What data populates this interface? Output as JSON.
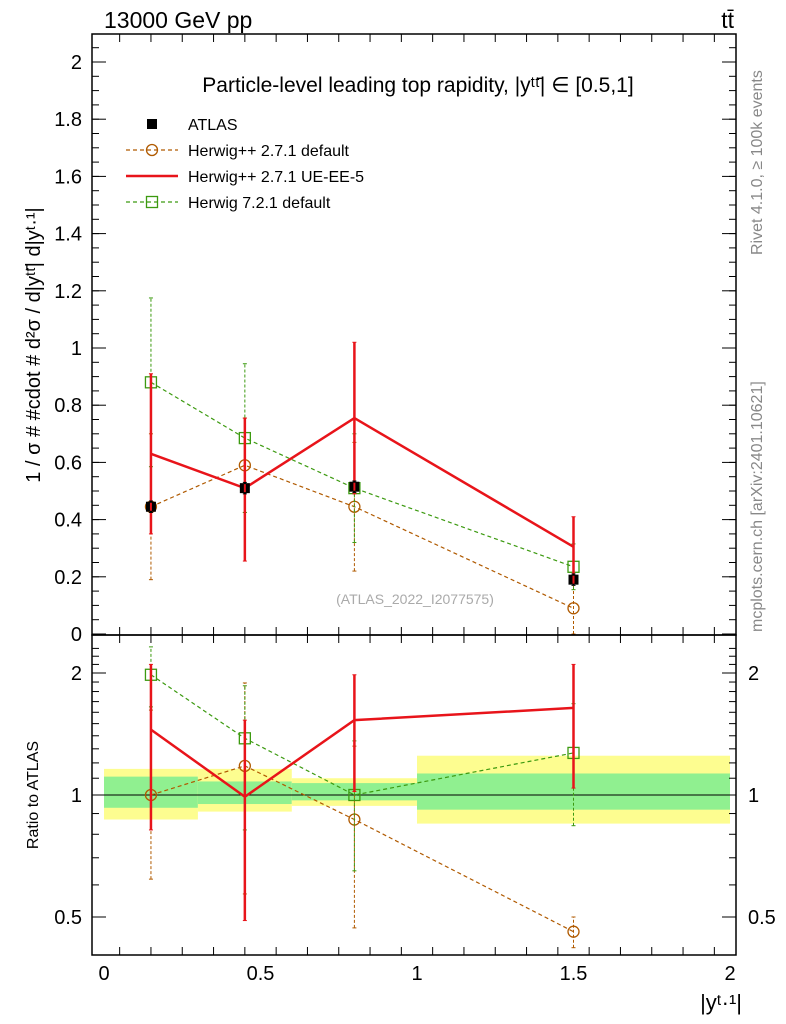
{
  "header": {
    "left": "13000 GeV pp",
    "right": "tt̄"
  },
  "side": {
    "rivet": "Rivet 4.1.0, ≥ 100k events",
    "mcplots": "mcplots.cern.ch [arXiv:2401.10621]"
  },
  "main_title": "Particle-level leading top rapidity, |yᵗᵗ̄| ∈ [0.5,1]",
  "watermark": "(ATLAS_2022_I2077575)",
  "upper_ylabel": "1 / σ # #cdot # d²σ / d|yᵗᵗ̄| d|yᵗ·¹|",
  "lower_ylabel": "Ratio to ATLAS",
  "xlabel": "|yᵗ·¹|",
  "legend": [
    {
      "label": "ATLAS"
    },
    {
      "label": "Herwig++ 2.7.1 default"
    },
    {
      "label": "Herwig++ 2.7.1 UE-EE-5"
    },
    {
      "label": "Herwig 7.2.1 default"
    }
  ],
  "colors": {
    "atlas": "#000000",
    "herwig_default": "#b05a00",
    "herwig_ueee5": "#e8141a",
    "herwig7": "#3c9a10",
    "band_outer": "#fdfd90",
    "band_inner": "#90f090"
  },
  "chart_data": [
    {
      "type": "scatter",
      "panel": "main",
      "xlim": [
        -0.1,
        2.05
      ],
      "ylim": [
        0,
        2.1
      ],
      "yticks": [
        "0",
        "0.2",
        "0.4",
        "0.6",
        "0.8",
        "1",
        "1.2",
        "1.4",
        "1.6",
        "1.8",
        "2"
      ],
      "xticks": [
        "0",
        "0.5",
        "1",
        "1.5",
        "2"
      ],
      "bins": [
        [
          0,
          0.3
        ],
        [
          0.3,
          0.6
        ],
        [
          0.6,
          1.0
        ],
        [
          1.0,
          2.0
        ]
      ],
      "x": [
        0.15,
        0.45,
        0.8,
        1.5
      ],
      "series": [
        {
          "name": "ATLAS",
          "values": [
            0.445,
            0.51,
            0.515,
            0.19
          ],
          "err_lo": [
            0.02,
            0.02,
            0.02,
            0.02
          ],
          "err_hi": [
            0.02,
            0.02,
            0.02,
            0.02
          ]
        },
        {
          "name": "Herwig++ 2.7.1 default",
          "values": [
            0.445,
            0.59,
            0.445,
            0.09
          ],
          "err_lo": [
            0.255,
            0.165,
            0.225,
            0.09
          ],
          "err_hi": [
            0.255,
            0.165,
            0.225,
            0.09
          ]
        },
        {
          "name": "Herwig++ 2.7.1 UE-EE-5",
          "values": [
            0.63,
            0.51,
            0.755,
            0.305
          ],
          "err_lo": [
            0.28,
            0.255,
            0.265,
            0.105
          ],
          "err_hi": [
            0.28,
            0.245,
            0.265,
            0.105
          ]
        },
        {
          "name": "Herwig 7.2.1 default",
          "values": [
            0.88,
            0.685,
            0.51,
            0.235
          ],
          "err_lo": [
            0.295,
            0.26,
            0.19,
            0.08
          ],
          "err_hi": [
            0.295,
            0.26,
            0.19,
            0.08
          ]
        }
      ]
    },
    {
      "type": "scatter",
      "panel": "ratio",
      "xlim": [
        -0.1,
        2.05
      ],
      "ylim": [
        0.4,
        2.4
      ],
      "yscale": "log",
      "yticks": [
        "0.5",
        "1",
        "2"
      ],
      "xticks": [
        "0",
        "0.5",
        "1",
        "1.5",
        "2"
      ],
      "x": [
        0.15,
        0.45,
        0.8,
        1.5
      ],
      "bands": {
        "bins": [
          [
            0,
            0.3
          ],
          [
            0.3,
            0.6
          ],
          [
            0.6,
            1.0
          ],
          [
            1.0,
            2.0
          ]
        ],
        "outer": [
          [
            0.87,
            1.16
          ],
          [
            0.91,
            1.16
          ],
          [
            0.94,
            1.1
          ],
          [
            0.85,
            1.25
          ]
        ],
        "inner": [
          [
            0.93,
            1.11
          ],
          [
            0.95,
            1.08
          ],
          [
            0.97,
            1.07
          ],
          [
            0.92,
            1.13
          ]
        ]
      },
      "series": [
        {
          "name": "Herwig++ 2.7.1 default",
          "values": [
            1.0,
            1.18,
            0.87,
            0.46
          ],
          "err_lo": [
            0.62,
            0.57,
            0.47,
            0.42
          ],
          "err_hi": [
            1.62,
            1.89,
            1.32,
            0.5
          ]
        },
        {
          "name": "Herwig++ 2.7.1 UE-EE-5",
          "values": [
            1.45,
            0.99,
            1.53,
            1.64
          ],
          "err_lo": [
            0.82,
            0.49,
            1.02,
            1.04
          ],
          "err_hi": [
            2.1,
            1.53,
            1.98,
            2.1
          ]
        },
        {
          "name": "Herwig 7.2.1 default",
          "values": [
            1.98,
            1.38,
            1.0,
            1.27
          ],
          "err_lo": [
            1.65,
            0.82,
            0.65,
            0.84
          ],
          "err_hi": [
            2.32,
            1.86,
            1.36,
            1.68
          ]
        }
      ]
    }
  ]
}
